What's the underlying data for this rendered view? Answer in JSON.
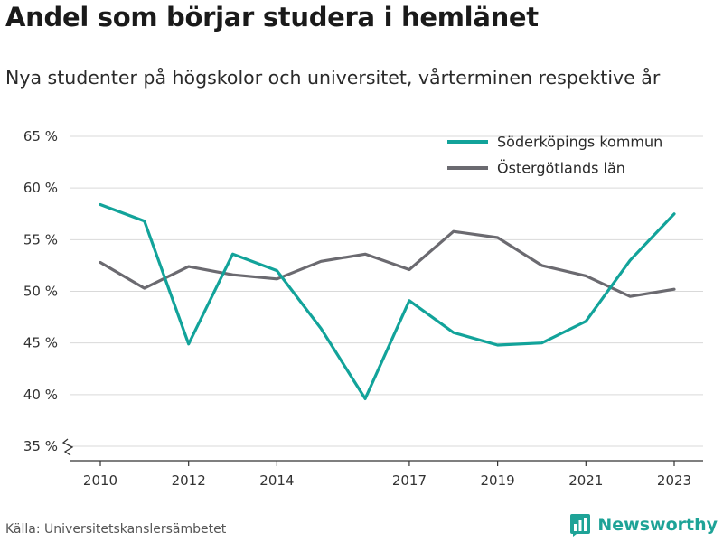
{
  "title": "Andel som börjar studera i hemlänet",
  "subtitle": "Nya studenter på högskolor och universitet, vårterminen respektive år",
  "source": "Källa: Universitetskanslersämbetet",
  "brand": "Newsworthy",
  "colors": {
    "accent": "#12a39a",
    "secondary": "#6b6a70",
    "brand": "#1ea397"
  },
  "chart_data": {
    "type": "line",
    "title": "Andel som börjar studera i hemlänet",
    "xlabel": "",
    "ylabel": "",
    "x": [
      2010,
      2011,
      2012,
      2013,
      2014,
      2015,
      2016,
      2017,
      2018,
      2019,
      2020,
      2021,
      2022,
      2023
    ],
    "x_ticks": [
      2010,
      2012,
      2014,
      2017,
      2019,
      2021,
      2023
    ],
    "x_tick_labels": [
      "2010",
      "2012",
      "2014",
      "2017",
      "2019",
      "2021",
      "2023"
    ],
    "y_ticks": [
      35,
      40,
      45,
      50,
      55,
      60,
      65
    ],
    "y_tick_labels": [
      "35 %",
      "40 %",
      "45 %",
      "50 %",
      "55 %",
      "60 %",
      "65 %"
    ],
    "ylim": [
      35,
      65
    ],
    "xlim": [
      2010,
      2023
    ],
    "grid": "horizontal",
    "y_axis_break": true,
    "legend_position": "top-right",
    "series": [
      {
        "name": "Söderköpings kommun",
        "color": "#12a39a",
        "values": [
          58.4,
          56.8,
          44.9,
          53.6,
          52.0,
          46.4,
          39.6,
          49.1,
          46.0,
          44.8,
          45.0,
          47.1,
          53.0,
          57.5
        ]
      },
      {
        "name": "Östergötlands län",
        "color": "#6b6a70",
        "values": [
          52.8,
          50.3,
          52.4,
          51.6,
          51.2,
          52.9,
          53.6,
          52.1,
          55.8,
          55.2,
          52.5,
          51.5,
          49.5,
          50.2
        ]
      }
    ]
  }
}
